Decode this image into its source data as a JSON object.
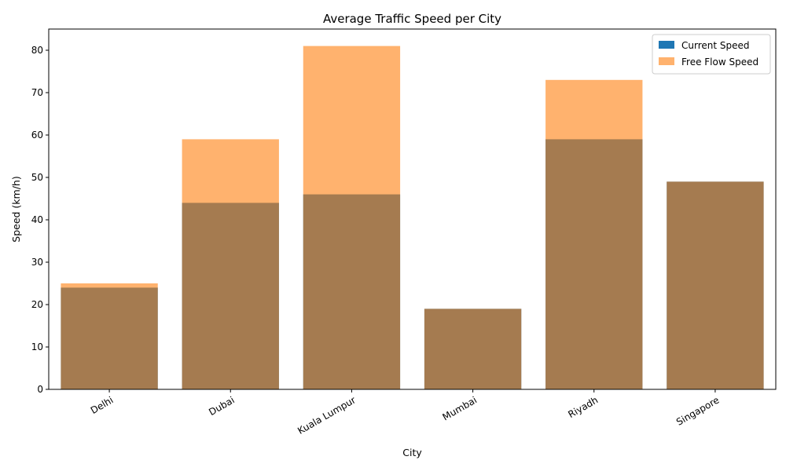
{
  "chart_data": {
    "type": "bar",
    "title": "Average Traffic Speed per City",
    "xlabel": "City",
    "ylabel": "Speed (km/h)",
    "categories": [
      "Delhi",
      "Dubai",
      "Kuala Lumpur",
      "Mumbai",
      "Riyadh",
      "Singapore"
    ],
    "series": [
      {
        "name": "Current Speed",
        "values": [
          24,
          44,
          46,
          19,
          59,
          49
        ],
        "color": "#1f77b4",
        "opacity": 1.0
      },
      {
        "name": "Free Flow Speed",
        "values": [
          25,
          59,
          81,
          19,
          73,
          49
        ],
        "color": "#ff7f0e",
        "opacity": 0.6
      }
    ],
    "ylim": [
      0,
      85
    ],
    "yticks": [
      0,
      10,
      20,
      30,
      40,
      50,
      60,
      70,
      80
    ],
    "grid": false,
    "legend_position": "top-right",
    "xtick_rotation": 30
  }
}
